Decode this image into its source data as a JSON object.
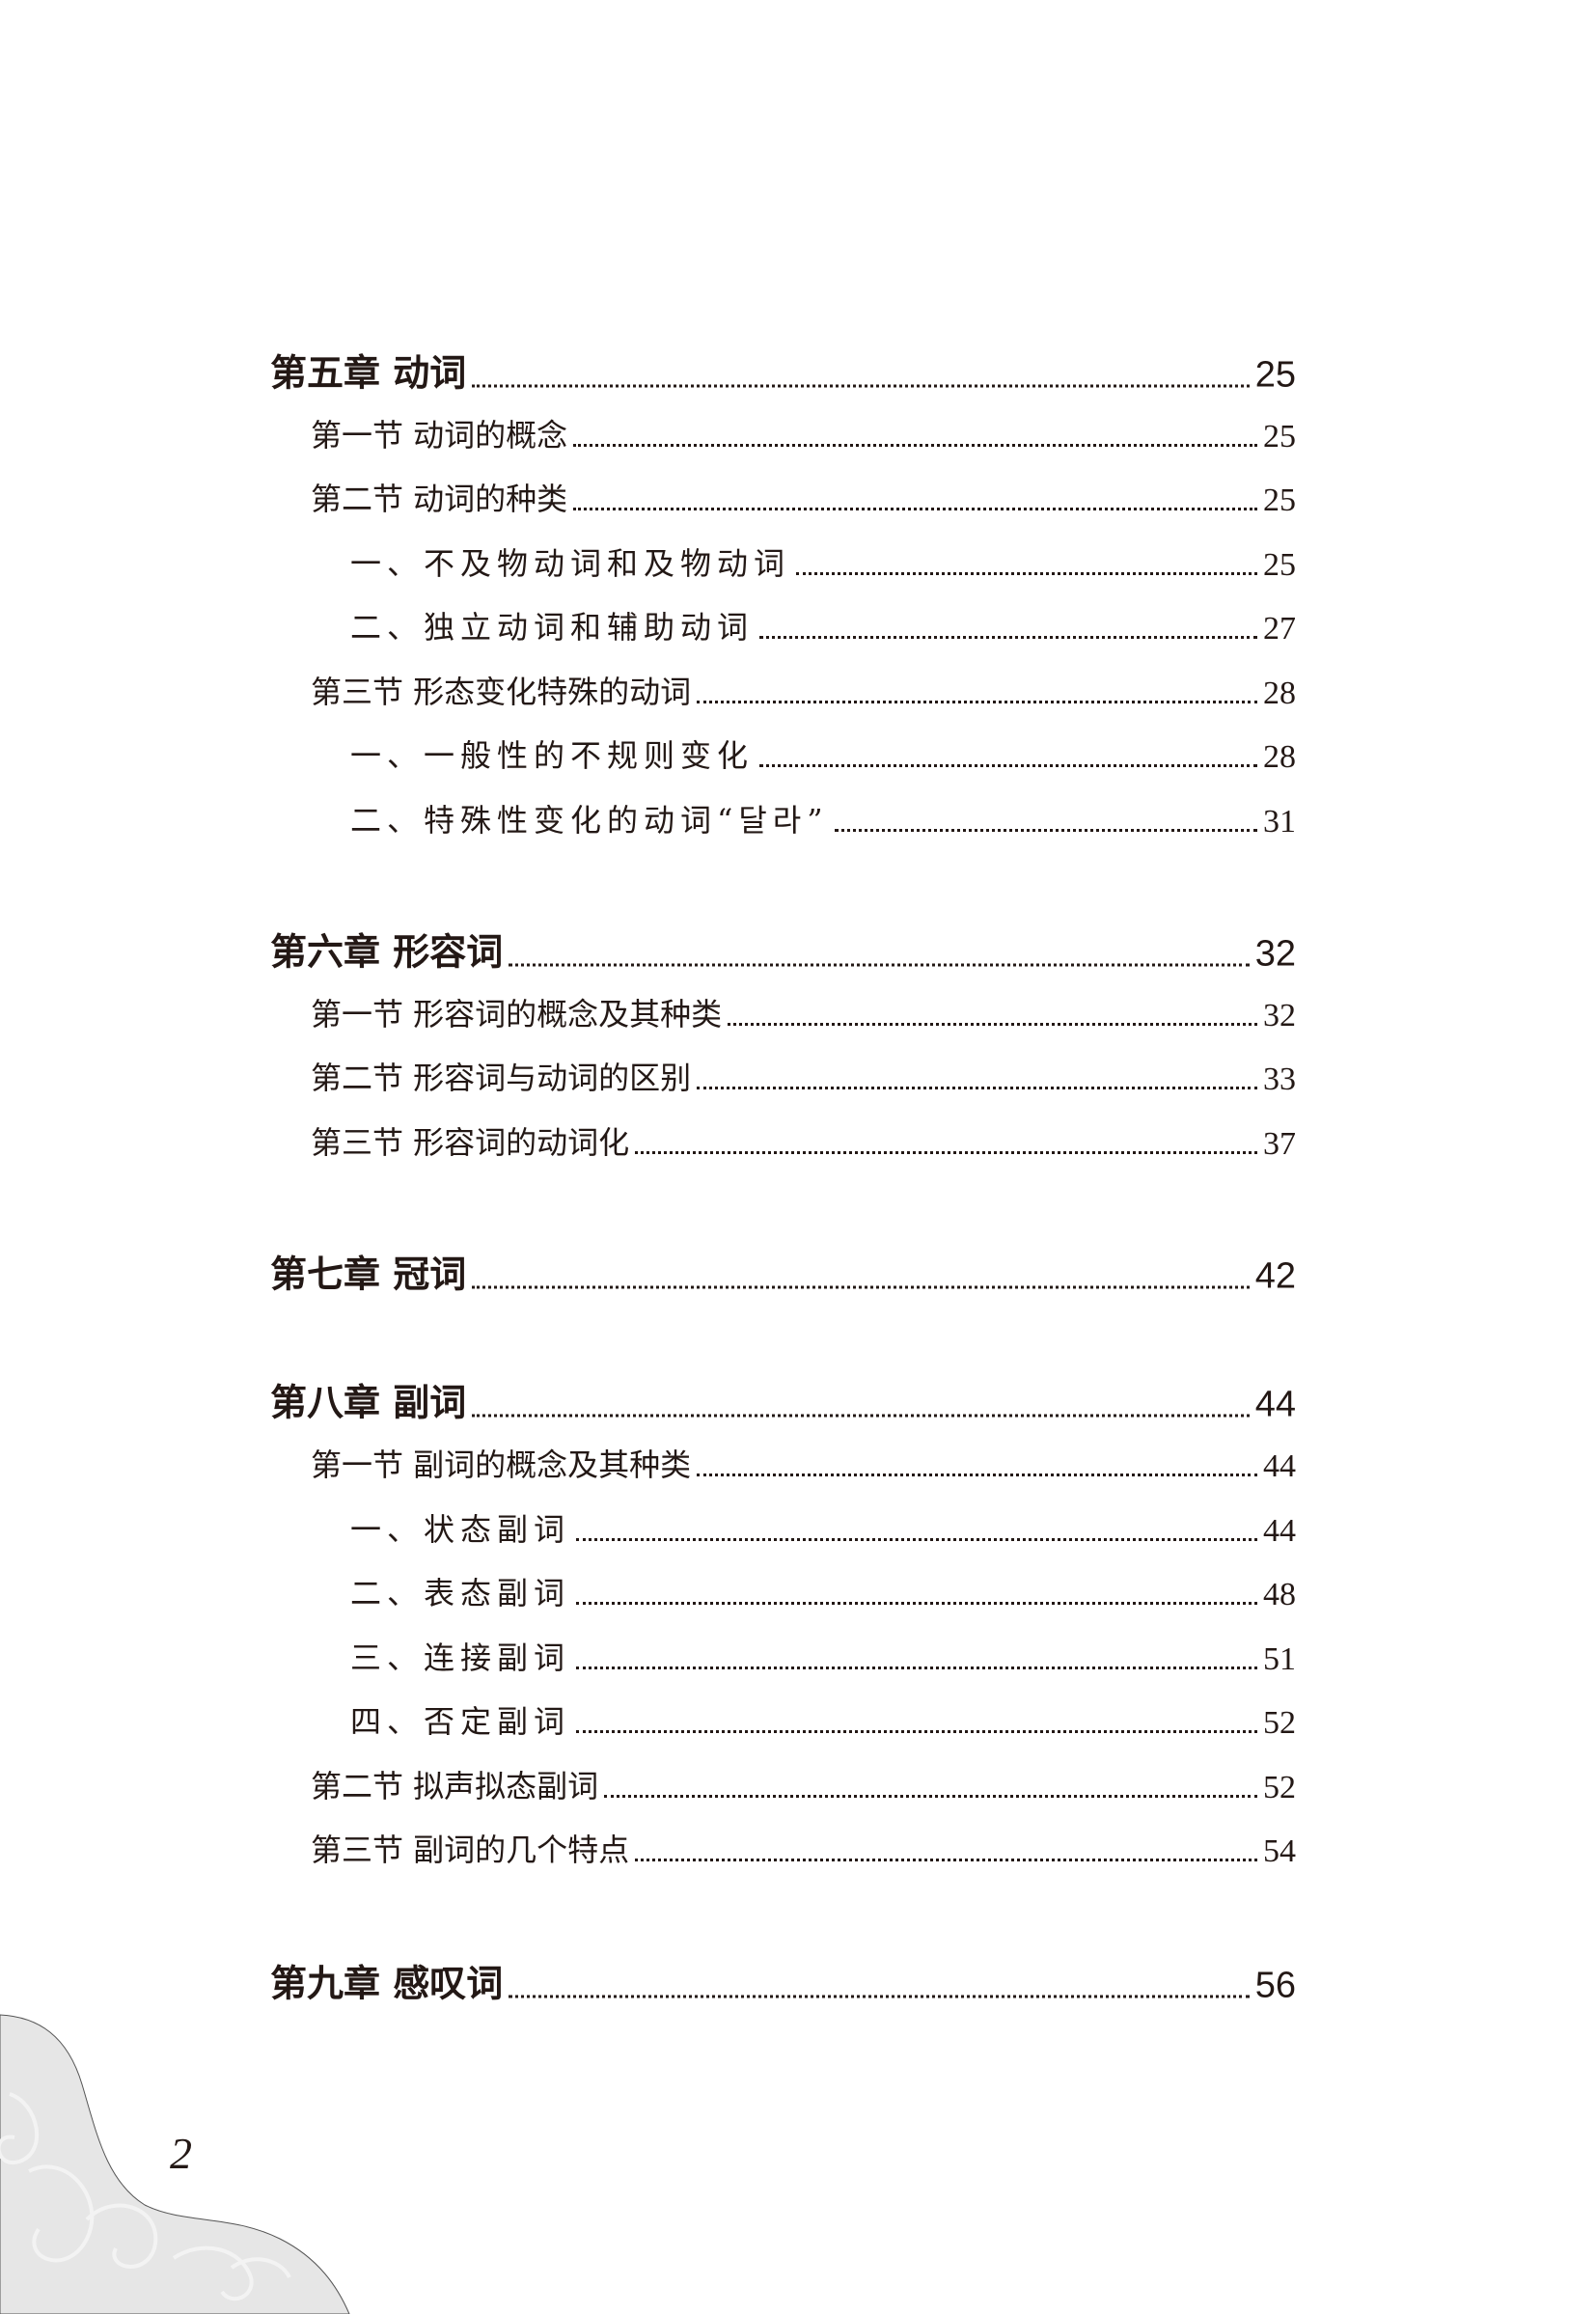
{
  "toc": [
    {
      "level": "chapter",
      "title": "第五章  动词",
      "page": "25"
    },
    {
      "level": "section",
      "title": "第一节  动词的概念",
      "page": "25"
    },
    {
      "level": "section",
      "title": "第二节  动词的种类",
      "page": "25"
    },
    {
      "level": "sub",
      "title": "一、不及物动词和及物动词",
      "page": "25"
    },
    {
      "level": "sub",
      "title": "二、独立动词和辅助动词",
      "page": "27"
    },
    {
      "level": "section",
      "title": "第三节  形态变化特殊的动词",
      "page": "28"
    },
    {
      "level": "sub",
      "title": "一、一般性的不规则变化",
      "page": "28"
    },
    {
      "level": "sub",
      "title": "二、特殊性变化的动词“달라”",
      "page": "31"
    },
    {
      "level": "chapter",
      "title": "第六章  形容词",
      "page": "32"
    },
    {
      "level": "section",
      "title": "第一节  形容词的概念及其种类",
      "page": "32"
    },
    {
      "level": "section",
      "title": "第二节  形容词与动词的区别",
      "page": "33"
    },
    {
      "level": "section",
      "title": "第三节  形容词的动词化",
      "page": "37"
    },
    {
      "level": "chapter",
      "title": "第七章  冠词",
      "page": "42"
    },
    {
      "level": "chapter",
      "title": "第八章  副词",
      "page": "44"
    },
    {
      "level": "section",
      "title": "第一节  副词的概念及其种类",
      "page": "44"
    },
    {
      "level": "sub",
      "title": "一、状态副词",
      "page": "44"
    },
    {
      "level": "sub",
      "title": "二、表态副词",
      "page": "48"
    },
    {
      "level": "sub",
      "title": "三、连接副词",
      "page": "51"
    },
    {
      "level": "sub",
      "title": "四、否定副词",
      "page": "52"
    },
    {
      "level": "section",
      "title": "第二节  拟声拟态副词",
      "page": "52"
    },
    {
      "level": "section",
      "title": "第三节  副词的几个特点",
      "page": "54"
    },
    {
      "level": "chapter",
      "title": "第九章  感叹词",
      "page": "56"
    }
  ],
  "page_number": "2"
}
